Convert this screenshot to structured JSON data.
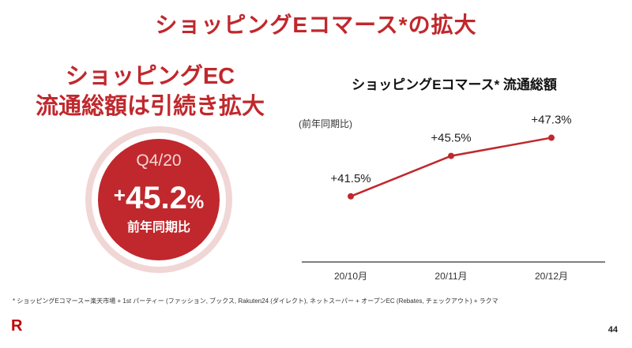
{
  "slide": {
    "title": "ショッピングEコマース*の拡大",
    "page_number": "44",
    "logo_text": "R"
  },
  "headline": {
    "line1": "ショッピングEC",
    "line2": "流通総額は引続き拡大"
  },
  "badge": {
    "period": "Q4/20",
    "value_sign": "+",
    "value_number": "45.2",
    "value_unit": "%",
    "label": "前年同期比"
  },
  "chart_meta": {
    "unit_label": "(前年同期比)"
  },
  "chart_data": {
    "type": "line",
    "title": "ショッピングEコマース* 流通総額",
    "categories": [
      "20/10月",
      "20/11月",
      "20/12月"
    ],
    "series": [
      {
        "name": "前年同期比",
        "values": [
          41.5,
          45.5,
          47.3
        ],
        "labels": [
          "+41.5%",
          "+45.5%",
          "+47.3%"
        ]
      }
    ],
    "xlabel": "",
    "ylabel": "(前年同期比)",
    "ylim": [
      35,
      50
    ],
    "grid": false,
    "color": "#c0282d"
  },
  "footnote": "* ショッピングEコマース＝楽天市場 + 1st パーティー (ファッション, ブックス, Rakuten24 (ダイレクト), ネットスーパー + オープンEC (Rebates, チェックアウト) + ラクマ",
  "colors": {
    "brand": "#c0282d",
    "badge_ring": "#f1d6d6"
  }
}
